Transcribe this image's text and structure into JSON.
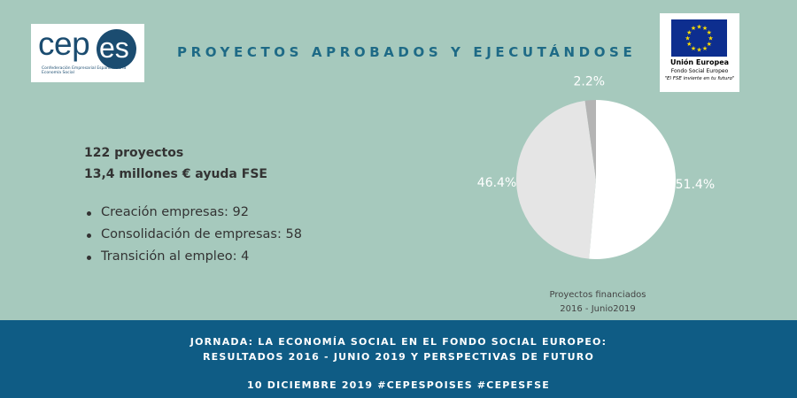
{
  "logos": {
    "cepes_word": "cep",
    "cepes_es": "es",
    "cepes_subtitle": "Confederación Empresarial Española de la Economía Social",
    "eu_line1": "Unión Europea",
    "eu_line2": "Fondo Social Europeo",
    "eu_line3": "\"El FSE invierte en tu futuro\""
  },
  "title": "PROYECTOS APROBADOS Y EJECUTÁNDOSE",
  "stats": {
    "line1": "122 proyectos",
    "line2": "13,4 millones € ayuda FSE"
  },
  "bullets": [
    "Creación empresas: 92",
    "Consolidación de empresas: 58",
    "Transición al empleo: 4"
  ],
  "chart_data": {
    "type": "pie",
    "slices": [
      {
        "label": "51.4%",
        "value": 51.4,
        "color": "#ffffff"
      },
      {
        "label": "46.4%",
        "value": 46.4,
        "color": "#e5e5e5"
      },
      {
        "label": "2.2%",
        "value": 2.2,
        "color": "#b4b4b4"
      }
    ],
    "caption_line1": "Proyectos financiados",
    "caption_line2": "2016 - Junio2019"
  },
  "footer": {
    "line1": "JORNADA: LA ECONOMÍA SOCIAL EN EL FONDO SOCIAL EUROPEO:",
    "line2": "RESULTADOS 2016 - JUNIO 2019 Y PERSPECTIVAS DE FUTURO",
    "line3": "10 DICIEMBRE 2019 #CEPESPOISES #CEPESFSE"
  },
  "colors": {
    "background": "#a6c9bd",
    "title": "#1e6a86",
    "banner": "#0f5c85"
  }
}
